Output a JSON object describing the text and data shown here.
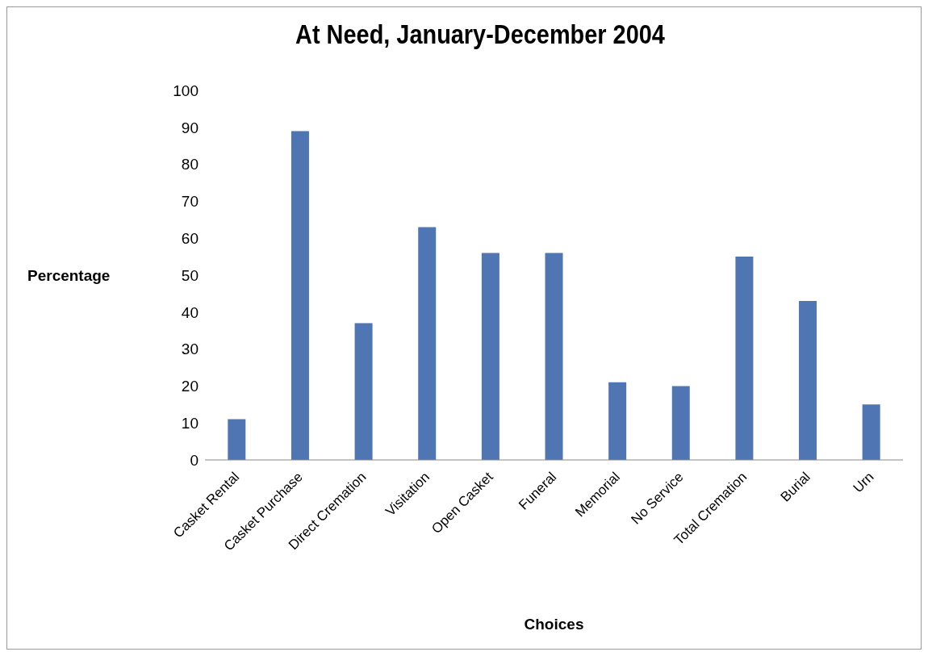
{
  "chart_data": {
    "type": "bar",
    "title": "At Need, January-December 2004",
    "xlabel": "Choices",
    "ylabel": "Percentage",
    "categories": [
      "Casket Rental",
      "Casket Purchase",
      "Direct Cremation",
      "Visitation",
      "Open Casket",
      "Funeral",
      "Memorial",
      "No Service",
      "Total Cremation",
      "Burial",
      "Urn"
    ],
    "values": [
      11,
      89,
      37,
      63,
      56,
      56,
      21,
      20,
      55,
      43,
      15
    ],
    "color": "#4f75b3",
    "ylim": [
      0,
      100
    ],
    "yticks": [
      0,
      10,
      20,
      30,
      40,
      50,
      60,
      70,
      80,
      90,
      100
    ],
    "grid": false,
    "legend": false
  }
}
